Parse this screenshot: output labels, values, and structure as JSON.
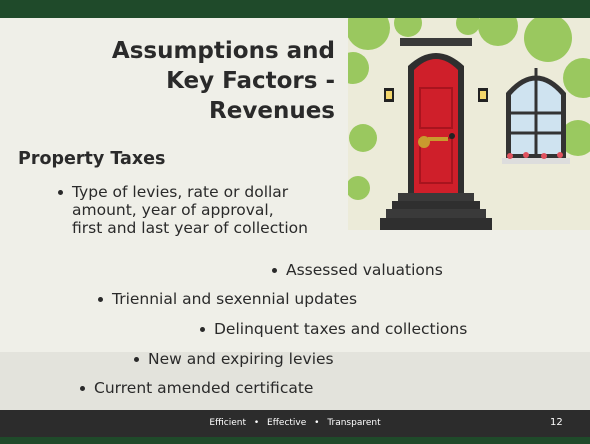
{
  "title": [
    "Assumptions and",
    "Key Factors -",
    "Revenues"
  ],
  "section": "Property Taxes",
  "bullets": [
    [
      "Type of levies, rate or dollar",
      "amount, year of approval,",
      "first and last year of collection"
    ],
    [
      "Assessed valuations"
    ],
    [
      "Triennial and sexennial updates"
    ],
    [
      "Delinquent taxes and collections"
    ],
    [
      "New and expiring levies"
    ],
    [
      "Current amended certificate"
    ]
  ],
  "footer": "Efficient • Effective • Transparent",
  "page_number": "12"
}
